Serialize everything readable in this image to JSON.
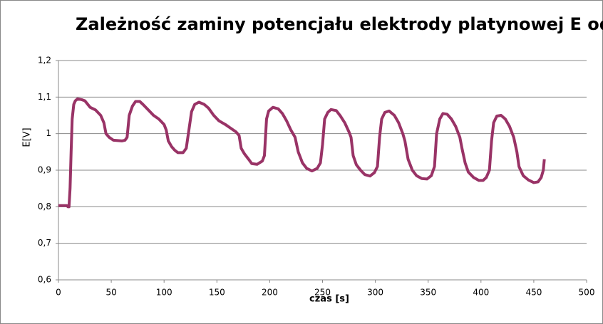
{
  "chart_data": {
    "type": "line",
    "title": "Zależność zaminy potencjału elektrody platynowej E od",
    "x_label": "czas [s]",
    "y_label": "E[V]",
    "xlim": [
      0,
      500
    ],
    "xticks": [
      0,
      50,
      100,
      150,
      200,
      250,
      300,
      350,
      400,
      450,
      500
    ],
    "ylim": [
      0.6,
      1.2
    ],
    "yticks": [
      {
        "value": 0.6,
        "label": "0,6"
      },
      {
        "value": 0.7,
        "label": "0,7"
      },
      {
        "value": 0.8,
        "label": "0,8"
      },
      {
        "value": 0.9,
        "label": "0,9"
      },
      1,
      {
        "value": 1.1,
        "label": "1,1"
      },
      {
        "value": 1.2,
        "label": "1,2"
      }
    ],
    "grid": true,
    "series": [
      {
        "name": "E",
        "color": "#993366",
        "x": [
          0,
          5,
          8,
          9,
          10,
          11,
          12,
          13,
          14.5,
          16,
          18,
          22,
          25,
          30,
          35,
          40,
          43,
          45,
          48,
          52,
          60,
          63,
          65,
          67,
          70,
          73,
          77,
          80,
          85,
          90,
          95,
          100,
          102,
          104,
          107,
          110,
          113,
          118,
          121,
          123,
          126,
          129,
          133,
          138,
          142,
          147,
          152,
          158,
          163,
          168,
          171,
          173,
          176,
          180,
          183,
          188,
          193,
          195,
          197,
          199,
          203,
          208,
          212,
          216,
          220,
          224,
          227,
          231,
          235,
          240,
          245,
          248,
          250,
          252,
          255,
          258,
          263,
          267,
          271,
          275,
          277,
          279,
          282,
          286,
          290,
          295,
          299,
          302,
          304,
          306,
          309,
          313,
          318,
          322,
          326,
          328,
          331,
          335,
          339,
          344,
          349,
          353,
          356,
          358,
          361,
          364,
          368,
          372,
          376,
          380,
          382,
          385,
          388,
          393,
          398,
          402,
          405,
          408,
          410,
          412,
          415,
          419,
          423,
          427,
          431,
          434,
          436,
          440,
          445,
          450,
          454,
          457,
          459,
          460
        ],
        "values": [
          0.803,
          0.803,
          0.803,
          0.8,
          0.8,
          0.85,
          0.95,
          1.04,
          1.08,
          1.09,
          1.095,
          1.093,
          1.09,
          1.072,
          1.065,
          1.05,
          1.03,
          1.0,
          0.99,
          0.982,
          0.98,
          0.982,
          0.99,
          1.05,
          1.075,
          1.088,
          1.088,
          1.08,
          1.065,
          1.05,
          1.04,
          1.025,
          1.01,
          0.98,
          0.965,
          0.955,
          0.948,
          0.948,
          0.96,
          1.0,
          1.06,
          1.08,
          1.086,
          1.08,
          1.07,
          1.05,
          1.035,
          1.025,
          1.015,
          1.005,
          0.995,
          0.96,
          0.945,
          0.93,
          0.918,
          0.916,
          0.925,
          0.94,
          1.04,
          1.062,
          1.072,
          1.068,
          1.055,
          1.035,
          1.01,
          0.99,
          0.95,
          0.92,
          0.905,
          0.898,
          0.905,
          0.92,
          0.97,
          1.04,
          1.058,
          1.066,
          1.063,
          1.048,
          1.03,
          1.005,
          0.99,
          0.94,
          0.915,
          0.9,
          0.888,
          0.884,
          0.893,
          0.91,
          0.99,
          1.04,
          1.058,
          1.062,
          1.05,
          1.03,
          1.0,
          0.98,
          0.93,
          0.9,
          0.885,
          0.877,
          0.876,
          0.885,
          0.91,
          1.0,
          1.04,
          1.055,
          1.053,
          1.04,
          1.02,
          0.99,
          0.96,
          0.92,
          0.895,
          0.88,
          0.872,
          0.872,
          0.88,
          0.9,
          0.98,
          1.03,
          1.048,
          1.05,
          1.04,
          1.02,
          0.99,
          0.95,
          0.91,
          0.885,
          0.873,
          0.866,
          0.868,
          0.88,
          0.9,
          0.93
        ]
      }
    ]
  }
}
